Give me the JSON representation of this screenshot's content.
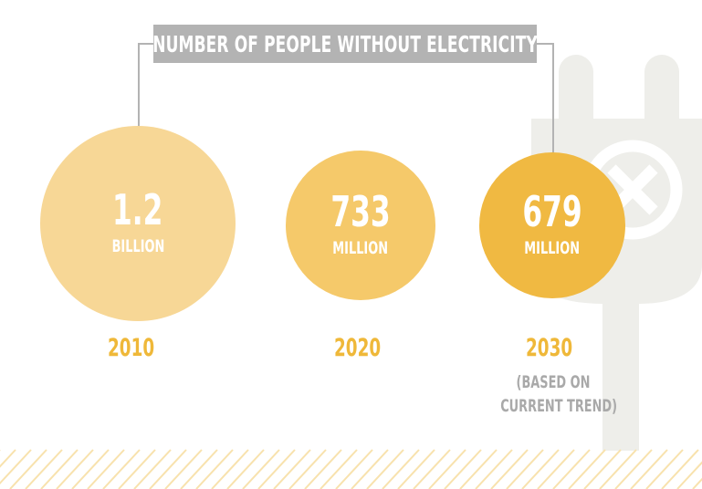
{
  "chart_data": {
    "type": "bubble",
    "title": "NUMBER OF PEOPLE WITHOUT ELECTRICITY",
    "categories": [
      "2010",
      "2020",
      "2030"
    ],
    "values_millions": [
      1200,
      733,
      679
    ],
    "labels": [
      {
        "value": "1.2",
        "unit": "BILLION"
      },
      {
        "value": "733",
        "unit": "MILLION"
      },
      {
        "value": "679",
        "unit": "MILLION"
      }
    ],
    "notes": {
      "2030": [
        "(BASED ON",
        "CURRENT TREND)"
      ]
    },
    "colors": {
      "circles": [
        "#f7d796",
        "#f5c96a",
        "#f0b942"
      ],
      "year_text": "#efb839",
      "title_bg": "#b3b3b3",
      "plug_icon": "#eeeeea",
      "hatch": "#f8e2ad"
    },
    "icons": [
      "electric-plug-icon",
      "prohibited-x-icon"
    ]
  }
}
